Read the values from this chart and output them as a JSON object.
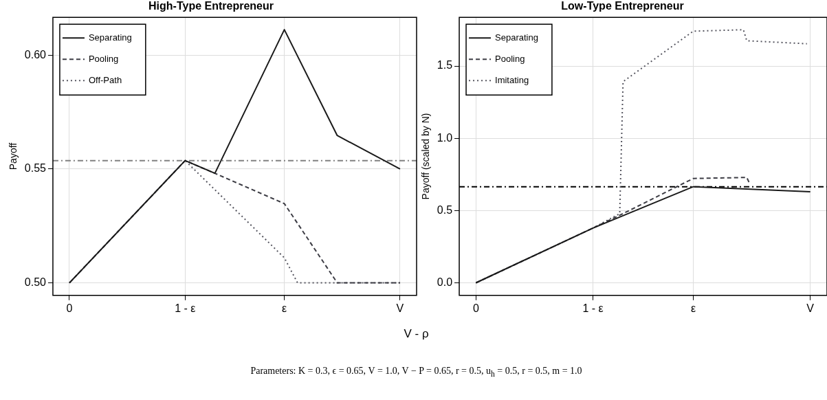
{
  "chart_data": [
    {
      "type": "line",
      "title": "High-Type Entrepreneur",
      "ylabel": "Payoff",
      "xlabel": "V - ρ",
      "categories": [
        null,
        null,
        null,
        null,
        null,
        "0",
        null,
        null,
        null,
        null,
        null,
        null,
        null,
        null,
        null,
        null,
        null,
        null,
        null,
        null,
        null,
        null,
        null,
        null,
        null,
        null,
        null,
        null,
        null,
        null,
        null,
        null,
        null,
        null,
        null,
        null,
        null,
        null,
        null,
        null,
        "1 - ε",
        null,
        null,
        null,
        null,
        null,
        null,
        null,
        null,
        null,
        null,
        null,
        null,
        null,
        null,
        null,
        null,
        null,
        null,
        null,
        null,
        null,
        null,
        null,
        null,
        null,
        null,
        null,
        null,
        null,
        "ε",
        null,
        null,
        null,
        null,
        null,
        null,
        null,
        null,
        null,
        null,
        null,
        null,
        null,
        null,
        null,
        null,
        null,
        null,
        null,
        null,
        null,
        null,
        null,
        null,
        null,
        null,
        null,
        null,
        null,
        null,
        null,
        null,
        null,
        null,
        "V",
        null,
        null,
        null,
        null,
        null
      ],
      "ylim": [
        0.4945,
        0.6166
      ],
      "yticks": [
        {
          "value": 0.5,
          "label": "0.50"
        },
        0.55,
        {
          "value": 0.6,
          "label": "0.60"
        }
      ],
      "grid": true,
      "legend": "top left",
      "marker": "none",
      "series": [
        {
          "name": "Separating",
          "color": "#1a1a1a",
          "line_style": "solid",
          "values": [
            null,
            null,
            null,
            null,
            null,
            0.5,
            null,
            null,
            null,
            null,
            null,
            null,
            null,
            null,
            null,
            null,
            null,
            null,
            null,
            null,
            null,
            null,
            null,
            null,
            null,
            null,
            null,
            null,
            null,
            null,
            null,
            null,
            null,
            null,
            null,
            null,
            null,
            null,
            null,
            null,
            0.5537,
            null,
            null,
            null,
            null,
            null,
            null,
            null,
            null,
            0.5481,
            null,
            null,
            null,
            null,
            null,
            null,
            null,
            null,
            null,
            null,
            null,
            null,
            null,
            null,
            null,
            null,
            null,
            null,
            null,
            null,
            0.6112,
            null,
            null,
            null,
            null,
            null,
            null,
            null,
            null,
            null,
            null,
            null,
            null,
            null,
            null,
            null,
            0.5647,
            null,
            null,
            null,
            null,
            null,
            null,
            null,
            null,
            null,
            null,
            null,
            null,
            null,
            null,
            null,
            null,
            null,
            null,
            0.55,
            null,
            null,
            null,
            null,
            null
          ]
        },
        {
          "name": "Pooling",
          "color": "#3c3c44",
          "line_style": "dashed",
          "values": [
            null,
            null,
            null,
            null,
            null,
            0.5,
            null,
            null,
            null,
            null,
            null,
            null,
            null,
            null,
            null,
            null,
            null,
            null,
            null,
            null,
            null,
            null,
            null,
            null,
            null,
            null,
            null,
            null,
            null,
            null,
            null,
            null,
            null,
            null,
            null,
            null,
            null,
            null,
            null,
            null,
            0.5537,
            null,
            null,
            null,
            null,
            null,
            null,
            null,
            null,
            0.5481,
            null,
            null,
            null,
            null,
            null,
            null,
            null,
            null,
            null,
            null,
            null,
            null,
            null,
            null,
            null,
            null,
            null,
            null,
            null,
            null,
            0.5348,
            null,
            null,
            null,
            null,
            null,
            null,
            null,
            null,
            null,
            null,
            null,
            null,
            null,
            null,
            null,
            0.5,
            null,
            null,
            null,
            null,
            null,
            null,
            null,
            null,
            null,
            null,
            null,
            null,
            null,
            null,
            null,
            null,
            null,
            null,
            0.5,
            null,
            null,
            null,
            null,
            null
          ]
        },
        {
          "name": "Off-Path",
          "color": "#55555f",
          "line_style": "dotted",
          "values": [
            null,
            null,
            null,
            null,
            null,
            0.5,
            null,
            null,
            null,
            null,
            null,
            null,
            null,
            null,
            null,
            null,
            null,
            null,
            null,
            null,
            null,
            null,
            null,
            null,
            null,
            null,
            null,
            null,
            null,
            null,
            null,
            null,
            null,
            null,
            null,
            null,
            null,
            null,
            null,
            null,
            0.5537,
            null,
            null,
            null,
            null,
            null,
            null,
            null,
            null,
            null,
            null,
            null,
            null,
            null,
            null,
            null,
            null,
            null,
            null,
            null,
            null,
            null,
            null,
            null,
            null,
            null,
            null,
            null,
            null,
            null,
            0.511,
            null,
            null,
            null,
            0.5,
            null,
            null,
            null,
            null,
            null,
            null,
            null,
            null,
            null,
            null,
            null,
            null,
            null,
            null,
            null,
            null,
            null,
            null,
            null,
            null,
            null,
            null,
            null,
            null,
            null,
            null,
            null,
            null,
            null,
            null,
            0.5,
            null,
            null,
            null,
            null,
            null
          ]
        }
      ],
      "ref_lines": [
        {
          "axis": "y",
          "value": 0.5537,
          "color": "#808080",
          "line_style": "dashed"
        }
      ],
      "annotations": [
        "Parameters: K = 0.3, ϵ = 0.65, V = 1.0, V − P = 0.65, r = 0.5, u$_{h}$ = 0.5, r = 0.5, m = 1.0"
      ]
    },
    {
      "type": "line",
      "title": "Low-Type Entrepreneur",
      "ylabel": "Payoff (scaled by N)",
      "categories": [
        null,
        null,
        null,
        null,
        null,
        "0",
        null,
        null,
        null,
        null,
        null,
        null,
        null,
        null,
        null,
        null,
        null,
        null,
        null,
        null,
        null,
        null,
        null,
        null,
        null,
        null,
        null,
        null,
        null,
        null,
        null,
        null,
        null,
        null,
        null,
        null,
        null,
        null,
        null,
        null,
        "1 - ε",
        null,
        null,
        null,
        null,
        null,
        null,
        null,
        null,
        null,
        null,
        null,
        null,
        null,
        null,
        null,
        null,
        null,
        null,
        null,
        null,
        null,
        null,
        null,
        null,
        null,
        null,
        null,
        null,
        null,
        "ε",
        null,
        null,
        null,
        null,
        null,
        null,
        null,
        null,
        null,
        null,
        null,
        null,
        null,
        null,
        null,
        null,
        null,
        null,
        null,
        null,
        null,
        null,
        null,
        null,
        null,
        null,
        null,
        null,
        null,
        null,
        null,
        null,
        null,
        null,
        "V",
        null,
        null,
        null,
        null,
        null
      ],
      "ylim": [
        -0.087,
        1.837
      ],
      "yticks": [
        {
          "value": 0,
          "label": "0.0"
        },
        0.5,
        {
          "value": 1,
          "label": "1.0"
        },
        1.5
      ],
      "grid": true,
      "legend": "top left",
      "marker": "none",
      "series": [
        {
          "name": "Separating",
          "color": "#1a1a1a",
          "line_style": "solid",
          "values": [
            null,
            null,
            null,
            null,
            null,
            0,
            null,
            null,
            null,
            null,
            null,
            null,
            null,
            null,
            null,
            null,
            null,
            null,
            null,
            null,
            null,
            null,
            null,
            null,
            null,
            null,
            null,
            null,
            null,
            null,
            null,
            null,
            null,
            null,
            null,
            null,
            null,
            null,
            null,
            null,
            0.379,
            null,
            null,
            null,
            null,
            null,
            null,
            null,
            null,
            null,
            null,
            null,
            null,
            null,
            null,
            null,
            null,
            null,
            null,
            null,
            null,
            null,
            null,
            null,
            null,
            null,
            null,
            null,
            null,
            null,
            0.665,
            null,
            null,
            null,
            null,
            null,
            null,
            null,
            null,
            null,
            null,
            null,
            null,
            null,
            null,
            null,
            null,
            null,
            null,
            null,
            null,
            null,
            null,
            null,
            null,
            null,
            null,
            null,
            null,
            null,
            null,
            null,
            null,
            null,
            null,
            0.63,
            null,
            null,
            null,
            null,
            null
          ]
        },
        {
          "name": "Pooling",
          "color": "#3c3c44",
          "line_style": "dashed",
          "values": [
            null,
            null,
            null,
            null,
            null,
            0,
            null,
            null,
            null,
            null,
            null,
            null,
            null,
            null,
            null,
            null,
            null,
            null,
            null,
            null,
            null,
            null,
            null,
            null,
            null,
            null,
            null,
            null,
            null,
            null,
            null,
            null,
            null,
            null,
            null,
            null,
            null,
            null,
            null,
            null,
            0.379,
            null,
            null,
            null,
            null,
            null,
            null,
            null,
            null,
            0.479,
            null,
            null,
            null,
            null,
            null,
            null,
            null,
            null,
            null,
            null,
            null,
            null,
            null,
            null,
            null,
            null,
            null,
            null,
            null,
            null,
            0.722,
            null,
            null,
            null,
            null,
            null,
            null,
            null,
            null,
            null,
            null,
            null,
            null,
            null,
            null,
            null,
            0.729,
            0.68,
            null,
            null,
            null,
            null,
            null,
            null,
            null,
            null,
            null,
            null,
            null,
            null,
            null,
            null,
            null,
            null,
            null,
            null,
            null,
            null,
            null,
            null,
            null
          ]
        },
        {
          "name": "Imitating",
          "color": "#55555f",
          "line_style": "dotted",
          "values": [
            null,
            null,
            null,
            null,
            null,
            0,
            null,
            null,
            null,
            null,
            null,
            null,
            null,
            null,
            null,
            null,
            null,
            null,
            null,
            null,
            null,
            null,
            null,
            null,
            null,
            null,
            null,
            null,
            null,
            null,
            null,
            null,
            null,
            null,
            null,
            null,
            null,
            null,
            null,
            null,
            0.379,
            null,
            null,
            null,
            null,
            null,
            null,
            null,
            0.479,
            1.392,
            null,
            null,
            null,
            null,
            null,
            null,
            null,
            null,
            null,
            null,
            null,
            null,
            null,
            null,
            null,
            null,
            null,
            null,
            null,
            null,
            1.741,
            null,
            null,
            null,
            null,
            null,
            null,
            null,
            null,
            null,
            null,
            null,
            null,
            null,
            null,
            1.751,
            1.675,
            null,
            null,
            null,
            null,
            null,
            null,
            null,
            null,
            null,
            null,
            null,
            null,
            null,
            null,
            null,
            null,
            null,
            1.654,
            null,
            null,
            null,
            null,
            null,
            null
          ]
        }
      ],
      "ref_lines": [
        {
          "axis": "y",
          "value": 0.665,
          "color": "#000000",
          "line_style": "dashed"
        }
      ]
    }
  ]
}
